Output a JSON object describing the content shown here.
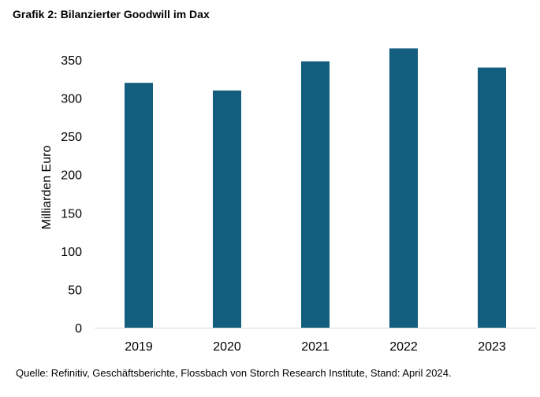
{
  "chart_data": {
    "type": "bar",
    "title": "Grafik 2: Bilanzierter Goodwill im Dax",
    "ylabel": "Milliarden Euro",
    "xlabel": "",
    "categories": [
      "2019",
      "2020",
      "2021",
      "2022",
      "2023"
    ],
    "values": [
      320,
      310,
      348,
      365,
      340
    ],
    "ylim": [
      0,
      350
    ],
    "yticks": [
      "0",
      "50",
      "100",
      "150",
      "200",
      "250",
      "300",
      "350"
    ],
    "bar_color": "#135e7f",
    "axis_color": "#d9d9d9",
    "grid": false,
    "source": "Quelle: Refinitiv, Geschäftsberichte, Flossbach von Storch Research Institute, Stand: April 2024."
  }
}
